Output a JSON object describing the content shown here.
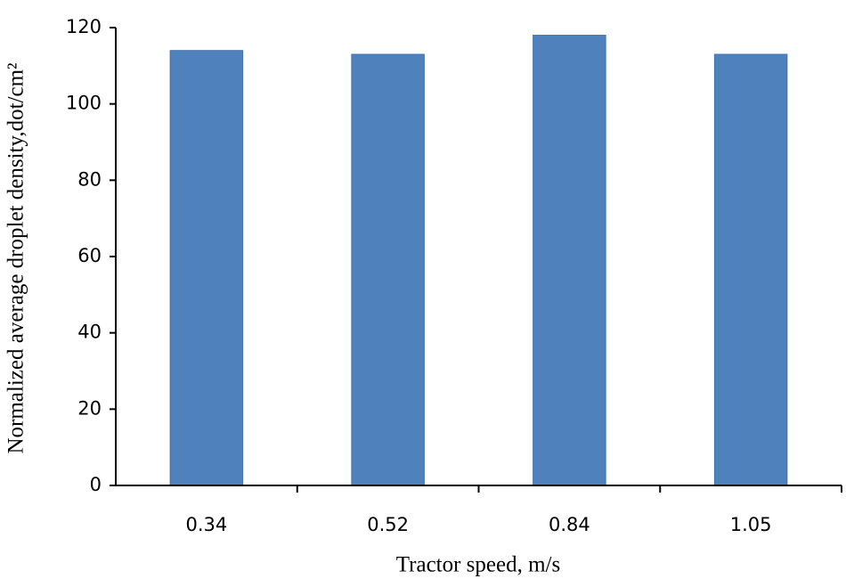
{
  "chart_data": {
    "type": "bar",
    "x_label": "Tractor speed, m/s",
    "y_label": "Normalized average droplet density,dot/cm²",
    "categories": [
      "0.34",
      "0.52",
      "0.84",
      "1.05"
    ],
    "values": [
      114,
      113,
      118,
      113
    ],
    "color": "#4f81bd",
    "ylim": [
      0,
      120
    ],
    "yticks": [
      0,
      20,
      40,
      60,
      80,
      100,
      120
    ],
    "grid": false
  }
}
